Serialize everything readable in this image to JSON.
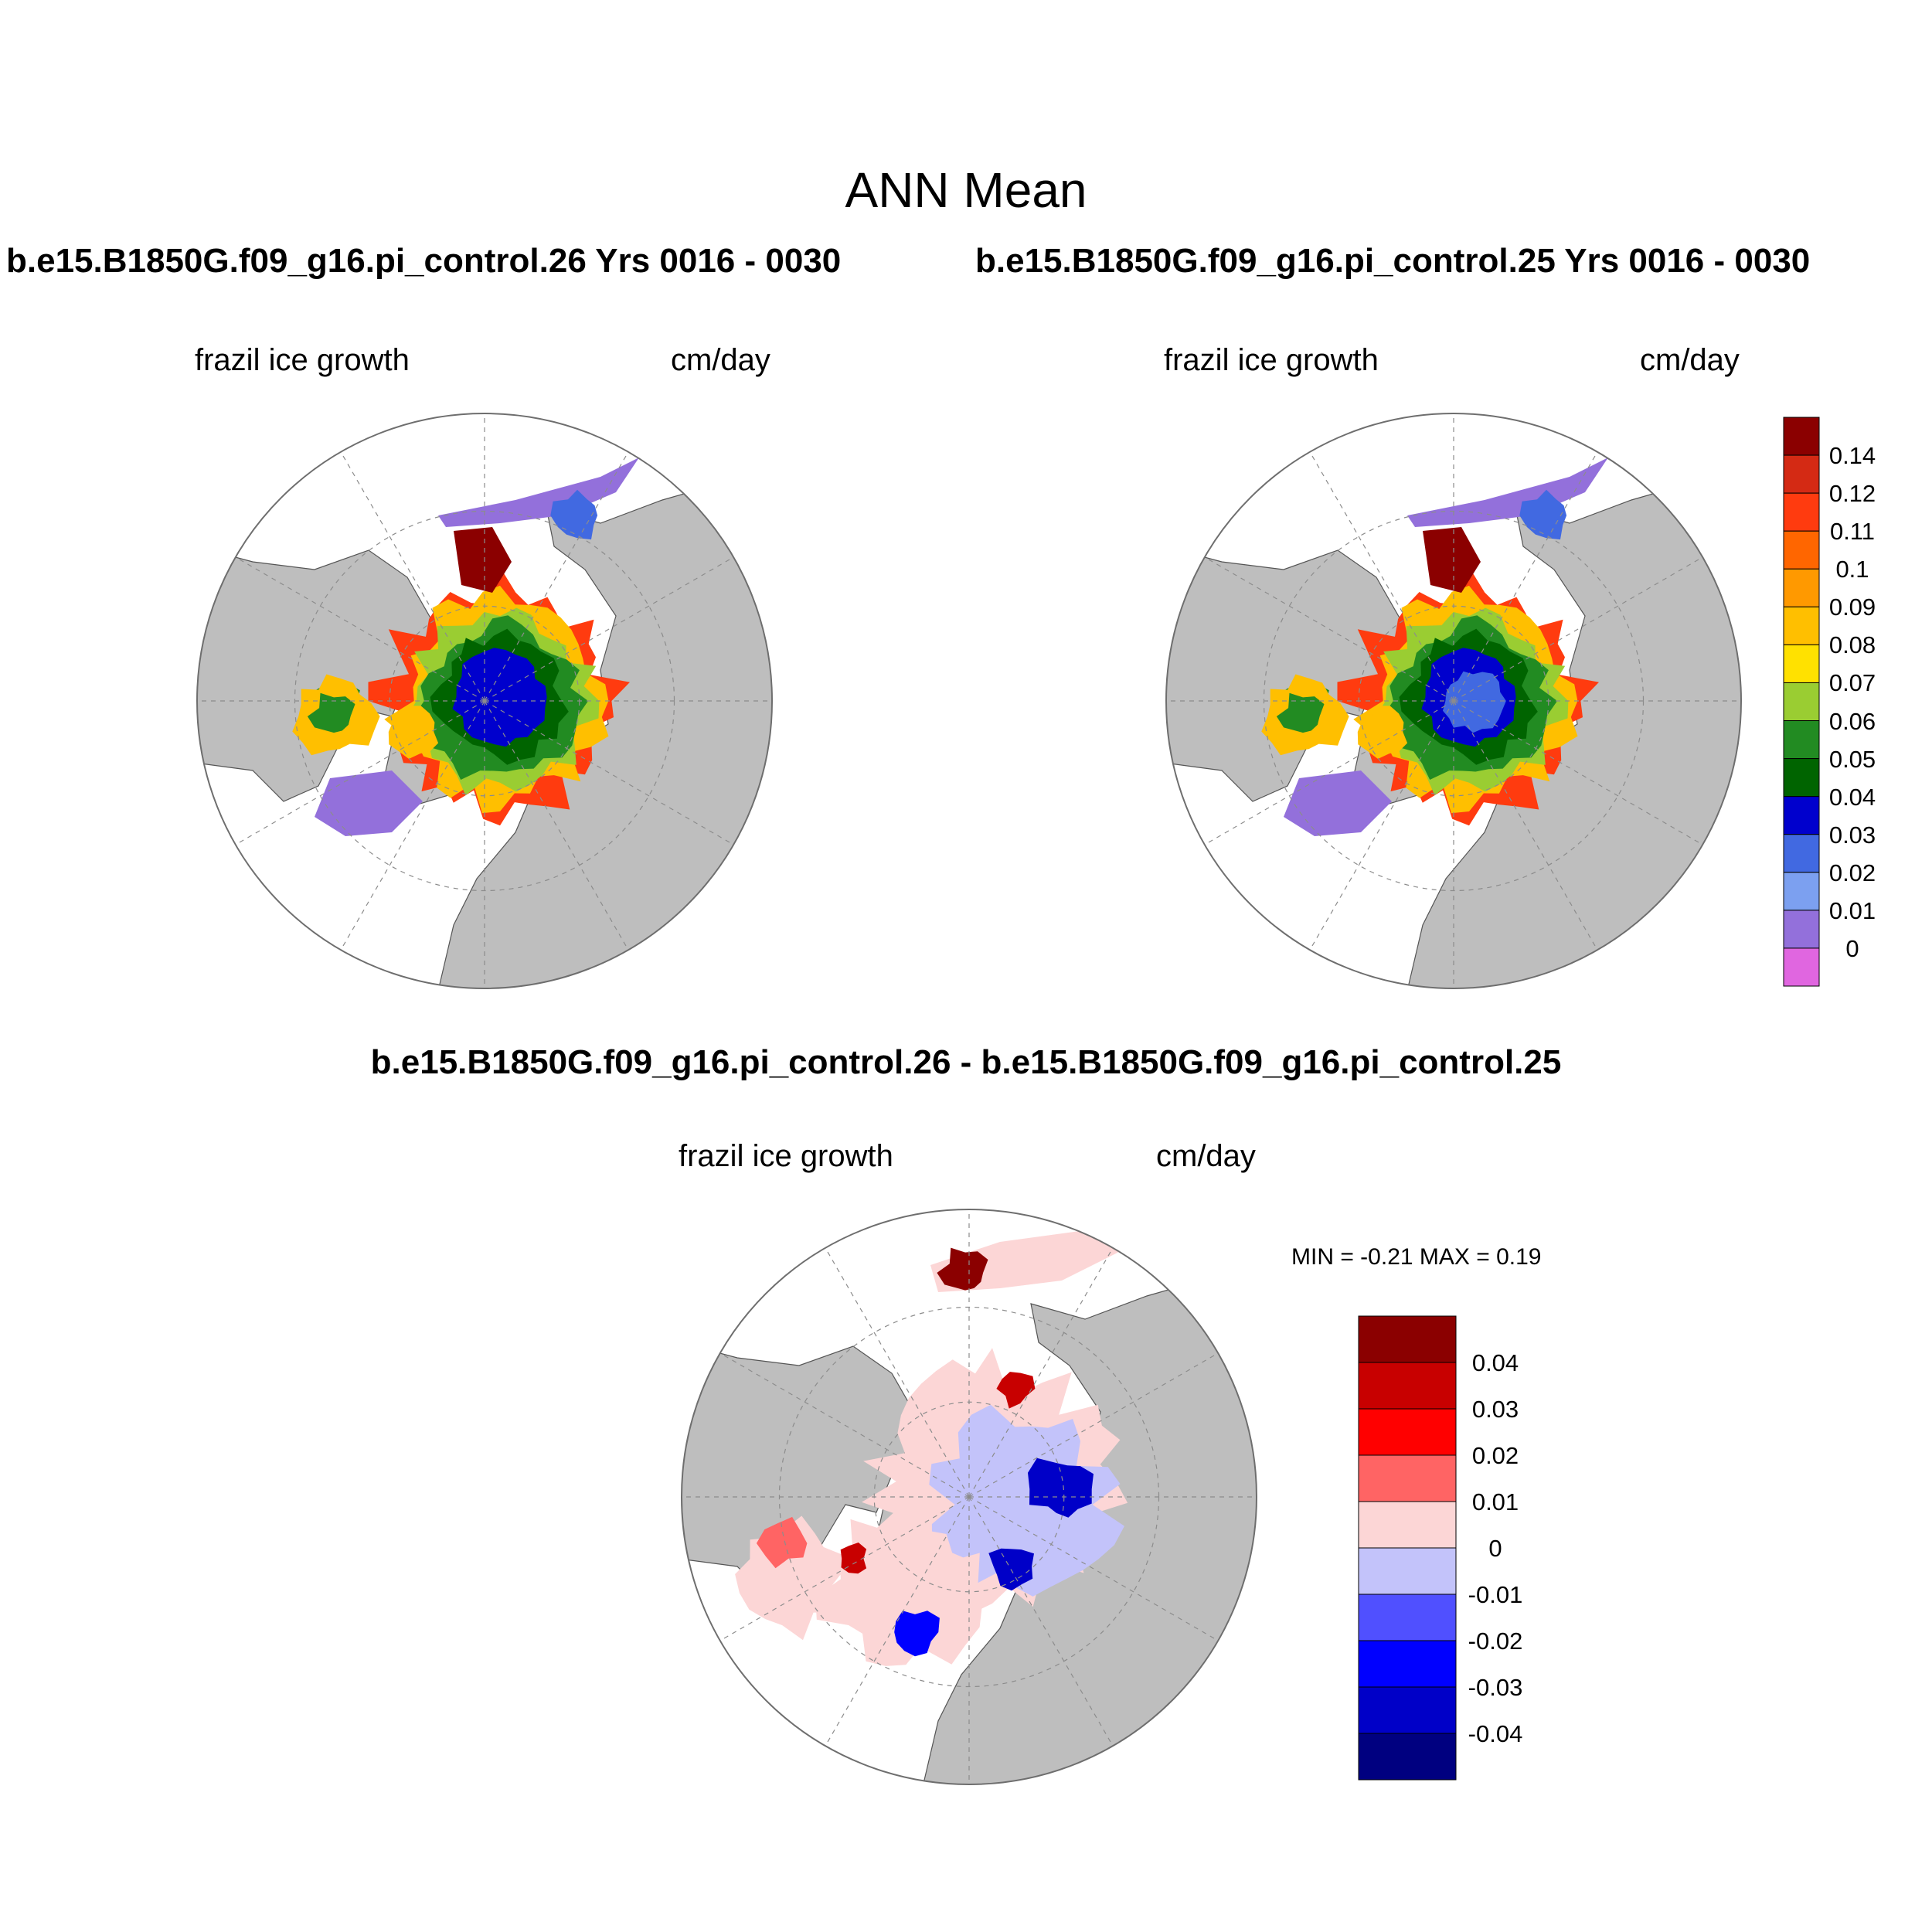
{
  "title": "ANN Mean",
  "panels": [
    {
      "case_title": "b.e15.B1850G.f09_g16.pi_control.26  Yrs 0016 - 0030",
      "left_label": "frazil ice growth",
      "right_label": "cm/day"
    },
    {
      "case_title": "b.e15.B1850G.f09_g16.pi_control.25  Yrs 0016 - 0030",
      "left_label": "frazil ice growth",
      "right_label": "cm/day"
    },
    {
      "case_title": "b.e15.B1850G.f09_g16.pi_control.26 - b.e15.B1850G.f09_g16.pi_control.25",
      "left_label": "frazil ice growth",
      "right_label": "cm/day",
      "minmax": "MIN =  -0.21 MAX =   0.19"
    }
  ],
  "colorbars": [
    {
      "name": "mean-colorbar",
      "colors": [
        "#8b0000",
        "#d42a14",
        "#ff3b0f",
        "#ff6600",
        "#ff9900",
        "#ffbf00",
        "#ffe100",
        "#9acd32",
        "#228b22",
        "#006400",
        "#0000cd",
        "#4169e1",
        "#7ca0f0",
        "#9370db",
        "#e066e0"
      ],
      "labels": [
        "0.14",
        "0.12",
        "0.11",
        "0.1",
        "0.09",
        "0.08",
        "0.07",
        "0.06",
        "0.05",
        "0.04",
        "0.03",
        "0.02",
        "0.01",
        "0"
      ]
    },
    {
      "name": "diff-colorbar",
      "colors": [
        "#8b0000",
        "#c80000",
        "#ff0000",
        "#ff6464",
        "#fcd6d6",
        "#c3c3fa",
        "#5050ff",
        "#0000ff",
        "#0000c8",
        "#000080"
      ],
      "labels": [
        "0.04",
        "0.03",
        "0.02",
        "0.01",
        "0",
        "-0.01",
        "-0.02",
        "-0.03",
        "-0.04"
      ]
    }
  ],
  "map_colors": {
    "land": "#bebebe",
    "ocean": "#ffffff",
    "grid": "#8c8c8c",
    "outline": "#6e6e6e"
  }
}
